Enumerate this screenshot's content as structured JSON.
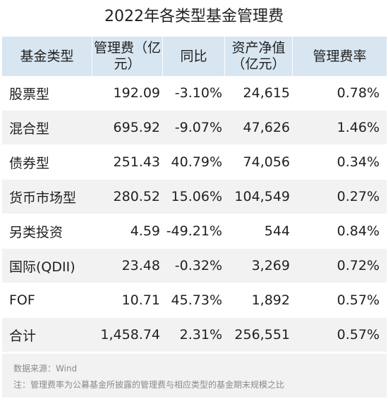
{
  "title": "2022年各类型基金管理费",
  "watermark": "Wind",
  "columns": [
    "基金类型",
    "管理费（亿元）",
    "同比",
    "资产净值（亿元）",
    "管理费率"
  ],
  "rows": [
    [
      "股票型",
      "192.09",
      "-3.10%",
      "24,615",
      "0.78%"
    ],
    [
      "混合型",
      "695.92",
      "-9.07%",
      "47,626",
      "1.46%"
    ],
    [
      "债券型",
      "251.43",
      "40.79%",
      "74,056",
      "0.34%"
    ],
    [
      "货币市场型",
      "280.52",
      "15.06%",
      "104,549",
      "0.27%"
    ],
    [
      "另类投资",
      "4.59",
      "-49.21%",
      "544",
      "0.84%"
    ],
    [
      "国际(QDII)",
      "23.48",
      "-0.32%",
      "3,269",
      "0.72%"
    ],
    [
      "FOF",
      "10.71",
      "45.73%",
      "1,892",
      "0.57%"
    ],
    [
      "合计",
      "1,458.74",
      "2.31%",
      "256,551",
      "0.57%"
    ]
  ],
  "notes": {
    "source": "数据来源：Wind",
    "remark": "注：管理费率为公募基金所披露的管理费与相应类型的基金期末规模之比"
  },
  "colors": {
    "header_bg": "#d7e6f1",
    "stripe_bg": "#f2f2f2",
    "note_text": "#8a8a8a"
  }
}
